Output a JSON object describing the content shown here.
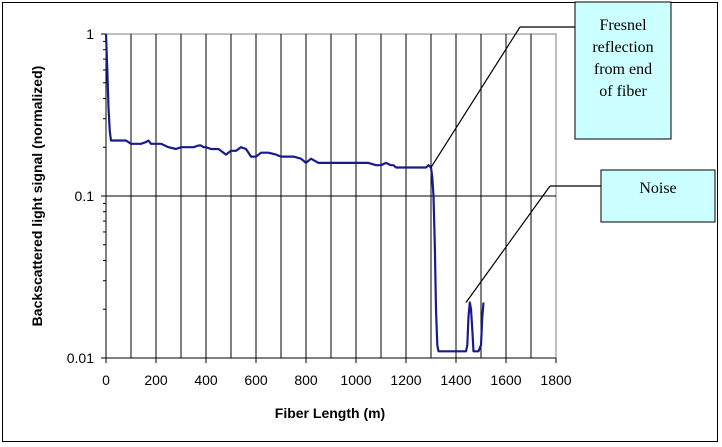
{
  "chart_data": {
    "type": "line",
    "title": "",
    "xlabel": "Fiber Length (m)",
    "ylabel": "Backscattered light signal (normalized)",
    "xlim": [
      0,
      1800
    ],
    "ylim": [
      0.01,
      1
    ],
    "y_scale": "log",
    "x_ticks": [
      0,
      200,
      400,
      600,
      800,
      1000,
      1200,
      1400,
      1600,
      1800
    ],
    "x_ticks_labels": [
      "0",
      "200",
      "400",
      "600",
      "800",
      "1000",
      "1200",
      "1400",
      "1600",
      "1800"
    ],
    "y_ticks": [
      0.01,
      0.1,
      1
    ],
    "y_ticks_labels": [
      "0.01",
      "0.1",
      "1"
    ],
    "grid": "vertical every 100 m; horizontal at decades",
    "series_color": "#1a1a8c",
    "series": [
      {
        "x": [
          0,
          5,
          10,
          15,
          20,
          30,
          50,
          80,
          100,
          120,
          140,
          160,
          170,
          180,
          200,
          220,
          250,
          280,
          300,
          320,
          350,
          370,
          380,
          390,
          400,
          420,
          450,
          470,
          480,
          500,
          520,
          540,
          560,
          570,
          580,
          600,
          620,
          650,
          680,
          700,
          720,
          750,
          780,
          800,
          820,
          850,
          880,
          900,
          950,
          1000,
          1050,
          1080,
          1100,
          1120,
          1140,
          1150,
          1160,
          1200,
          1250,
          1280,
          1290,
          1300,
          1305,
          1310,
          1315,
          1320,
          1325,
          1330,
          1340,
          1360,
          1400,
          1420,
          1440,
          1445,
          1450,
          1455,
          1460,
          1465,
          1470,
          1475,
          1480,
          1490,
          1500,
          1505,
          1510
        ],
        "y": [
          1.0,
          0.6,
          0.35,
          0.25,
          0.22,
          0.22,
          0.22,
          0.22,
          0.21,
          0.21,
          0.21,
          0.215,
          0.22,
          0.21,
          0.21,
          0.21,
          0.2,
          0.195,
          0.2,
          0.2,
          0.2,
          0.205,
          0.205,
          0.2,
          0.2,
          0.195,
          0.195,
          0.185,
          0.18,
          0.19,
          0.19,
          0.2,
          0.195,
          0.185,
          0.175,
          0.175,
          0.185,
          0.185,
          0.18,
          0.175,
          0.175,
          0.175,
          0.17,
          0.16,
          0.17,
          0.16,
          0.16,
          0.16,
          0.16,
          0.16,
          0.16,
          0.155,
          0.155,
          0.16,
          0.155,
          0.155,
          0.15,
          0.15,
          0.15,
          0.15,
          0.155,
          0.15,
          0.13,
          0.1,
          0.05,
          0.02,
          0.012,
          0.011,
          0.011,
          0.011,
          0.011,
          0.011,
          0.011,
          0.012,
          0.018,
          0.022,
          0.02,
          0.015,
          0.011,
          0.011,
          0.011,
          0.011,
          0.012,
          0.018,
          0.022
        ]
      }
    ],
    "annotations": [
      {
        "text_lines": [
          "Fresnel",
          "reflection",
          "from end",
          "of fiber"
        ],
        "points_to": [
          1300,
          0.15
        ],
        "fill": "#ccffff"
      },
      {
        "text_lines": [
          "Noise"
        ],
        "points_to": [
          1440,
          0.022
        ],
        "fill": "#ccffff"
      }
    ]
  }
}
